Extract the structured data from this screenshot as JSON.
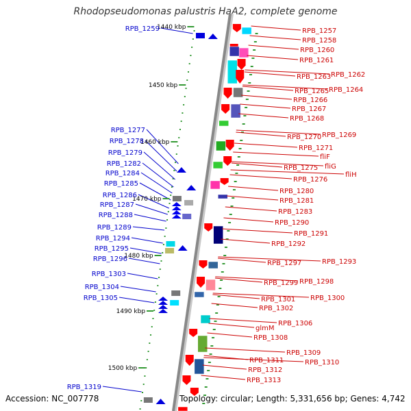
{
  "title": "Rhodopseudomonas palustris HaA2, complete genome",
  "footer": {
    "accession": "Accession: NC_007778",
    "topology": "Topology: circular; Length: 5,331,656 bp; Genes: 4,742"
  },
  "colors": {
    "left_label": "#0000cc",
    "right_label": "#cc0000",
    "tick": "#339933",
    "backbone": "#888888"
  },
  "scale_labels": [
    "1440 kbp",
    "1450 kbp",
    "1460 kbp",
    "1470 kbp",
    "1480 kbp",
    "1490 kbp",
    "1500 kbp"
  ],
  "left_genes": [
    "RPB_1259",
    "RPB_1277",
    "RPB_1278",
    "RPB_1279",
    "RPB_1282",
    "RPB_1284",
    "RPB_1285",
    "RPB_1286",
    "RPB_1287",
    "RPB_1288",
    "RPB_1289",
    "RPB_1294",
    "RPB_1295",
    "RPB_1296",
    "RPB_1303",
    "RPB_1304",
    "RPB_1305",
    "RPB_1319"
  ],
  "right_genes": [
    "RPB_1257",
    "RPB_1258",
    "RPB_1260",
    "RPB_1261",
    "RPB_1263",
    "RPB_1262",
    "RPB_1265",
    "RPB_1264",
    "RPB_1266",
    "RPB_1267",
    "RPB_1268",
    "RPB_1270",
    "RPB_1269",
    "RPB_1271",
    "fliF",
    "fliG",
    "RPB_1275",
    "fliH",
    "RPB_1276",
    "RPB_1280",
    "RPB_1281",
    "RPB_1283",
    "RPB_1290",
    "RPB_1291",
    "RPB_1292",
    "RPB_1297",
    "RPB_1293",
    "RPB_1299",
    "RPB_1298",
    "RPB_1301",
    "RPB_1300",
    "RPB_1302",
    "RPB_1306",
    "glmM",
    "RPB_1308",
    "RPB_1309",
    "RPB_1310",
    "RPB_1311",
    "RPB_1312",
    "RPB_1313"
  ]
}
